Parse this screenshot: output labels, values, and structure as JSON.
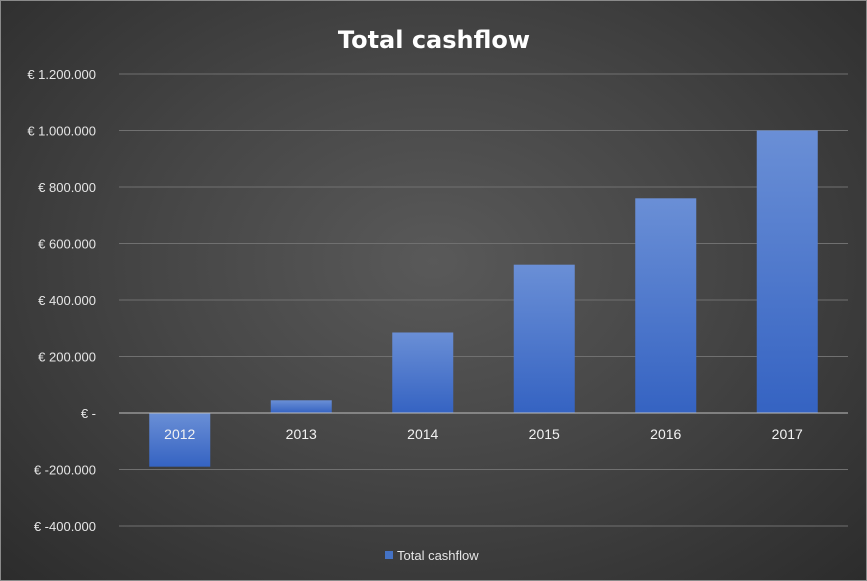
{
  "chart_data": {
    "type": "bar",
    "title": "Total cashflow",
    "categories": [
      "2012",
      "2013",
      "2014",
      "2015",
      "2016",
      "2017"
    ],
    "series": [
      {
        "name": "Total cashflow",
        "values": [
          -190000,
          45000,
          285000,
          525000,
          760000,
          1000000
        ]
      }
    ],
    "ylim": [
      -400000,
      1200000
    ],
    "yticks": [
      1200000,
      1000000,
      800000,
      600000,
      400000,
      200000,
      0,
      -200000,
      -400000
    ],
    "ytick_labels": [
      "€ 1.200.000",
      "€ 1.000.000",
      "€ 800.000",
      "€ 600.000",
      "€ 400.000",
      "€ 200.000",
      "€ -",
      "€ -200.000",
      "€ -400.000"
    ],
    "xlabel": "",
    "ylabel": "",
    "grid": true,
    "legend_position": "bottom",
    "colors": {
      "bar_top": "#6a8fd6",
      "bar_bottom": "#3563c2",
      "legend_swatch": "#4472c4"
    }
  }
}
